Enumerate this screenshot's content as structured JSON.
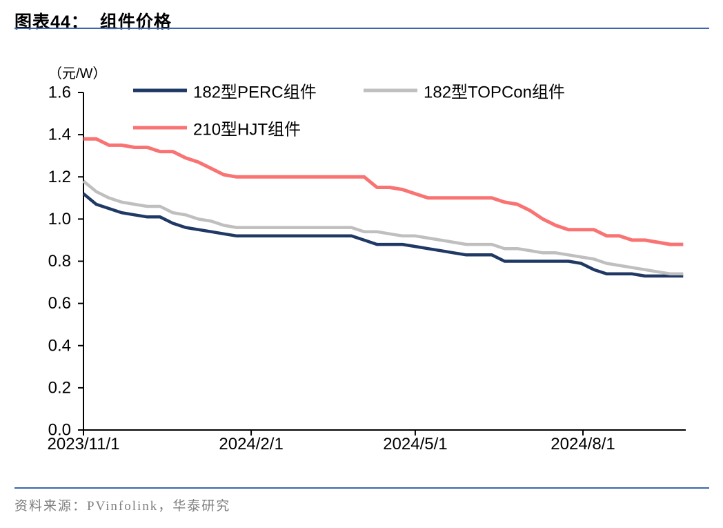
{
  "figure": {
    "title_prefix": "图表44：",
    "title_text": "组件价格",
    "unit_label": "（元/W）",
    "source_text": "资料来源：PVinfolink，华泰研究",
    "divider_color": "#3A66AE"
  },
  "chart_data": {
    "type": "line",
    "title": "组件价格",
    "ylabel": "元/W",
    "xlabel": "",
    "grid": false,
    "legend_position": "top-left-two-rows",
    "ylim": [
      0,
      1.6
    ],
    "ytick_step": 0.2,
    "xticks": [
      "2023/11/1",
      "2024/2/1",
      "2024/5/1",
      "2024/8/1"
    ],
    "x": [
      "2023/11/1",
      "2023/11/8",
      "2023/11/15",
      "2023/11/22",
      "2023/11/29",
      "2023/12/6",
      "2023/12/13",
      "2023/12/20",
      "2023/12/27",
      "2024/1/3",
      "2024/1/10",
      "2024/1/17",
      "2024/1/24",
      "2024/1/31",
      "2024/2/7",
      "2024/2/14",
      "2024/2/21",
      "2024/2/28",
      "2024/3/6",
      "2024/3/13",
      "2024/3/20",
      "2024/3/27",
      "2024/4/3",
      "2024/4/10",
      "2024/4/17",
      "2024/4/24",
      "2024/5/1",
      "2024/5/8",
      "2024/5/15",
      "2024/5/22",
      "2024/5/29",
      "2024/6/5",
      "2024/6/12",
      "2024/6/19",
      "2024/6/26",
      "2024/7/3",
      "2024/7/10",
      "2024/7/17",
      "2024/7/24",
      "2024/7/31",
      "2024/8/7",
      "2024/8/14",
      "2024/8/21",
      "2024/8/28",
      "2024/9/4",
      "2024/9/11",
      "2024/9/18",
      "2024/9/25"
    ],
    "series": [
      {
        "name": "182型PERC组件",
        "key": "perc",
        "color": "#1F3864",
        "stroke_width": 4.5,
        "values": [
          1.12,
          1.07,
          1.05,
          1.03,
          1.02,
          1.01,
          1.01,
          0.98,
          0.96,
          0.95,
          0.94,
          0.93,
          0.92,
          0.92,
          0.92,
          0.92,
          0.92,
          0.92,
          0.92,
          0.92,
          0.92,
          0.92,
          0.9,
          0.88,
          0.88,
          0.88,
          0.87,
          0.86,
          0.85,
          0.84,
          0.83,
          0.83,
          0.83,
          0.8,
          0.8,
          0.8,
          0.8,
          0.8,
          0.8,
          0.79,
          0.76,
          0.74,
          0.74,
          0.74,
          0.73,
          0.73,
          0.73,
          0.73
        ]
      },
      {
        "name": "182型TOPCon组件",
        "key": "topcon",
        "color": "#BFBFBF",
        "stroke_width": 4.5,
        "values": [
          1.18,
          1.13,
          1.1,
          1.08,
          1.07,
          1.06,
          1.06,
          1.03,
          1.02,
          1.0,
          0.99,
          0.97,
          0.96,
          0.96,
          0.96,
          0.96,
          0.96,
          0.96,
          0.96,
          0.96,
          0.96,
          0.96,
          0.94,
          0.94,
          0.93,
          0.92,
          0.92,
          0.91,
          0.9,
          0.89,
          0.88,
          0.88,
          0.88,
          0.86,
          0.86,
          0.85,
          0.84,
          0.84,
          0.83,
          0.82,
          0.81,
          0.79,
          0.78,
          0.77,
          0.76,
          0.75,
          0.74,
          0.74
        ]
      },
      {
        "name": "210型HJT组件",
        "key": "hjt",
        "color": "#F97373",
        "stroke_width": 5,
        "values": [
          1.38,
          1.38,
          1.35,
          1.35,
          1.34,
          1.34,
          1.32,
          1.32,
          1.29,
          1.27,
          1.24,
          1.21,
          1.2,
          1.2,
          1.2,
          1.2,
          1.2,
          1.2,
          1.2,
          1.2,
          1.2,
          1.2,
          1.2,
          1.15,
          1.15,
          1.14,
          1.12,
          1.1,
          1.1,
          1.1,
          1.1,
          1.1,
          1.1,
          1.08,
          1.07,
          1.04,
          1.0,
          0.97,
          0.95,
          0.95,
          0.95,
          0.92,
          0.92,
          0.9,
          0.9,
          0.89,
          0.88,
          0.88
        ]
      }
    ]
  }
}
